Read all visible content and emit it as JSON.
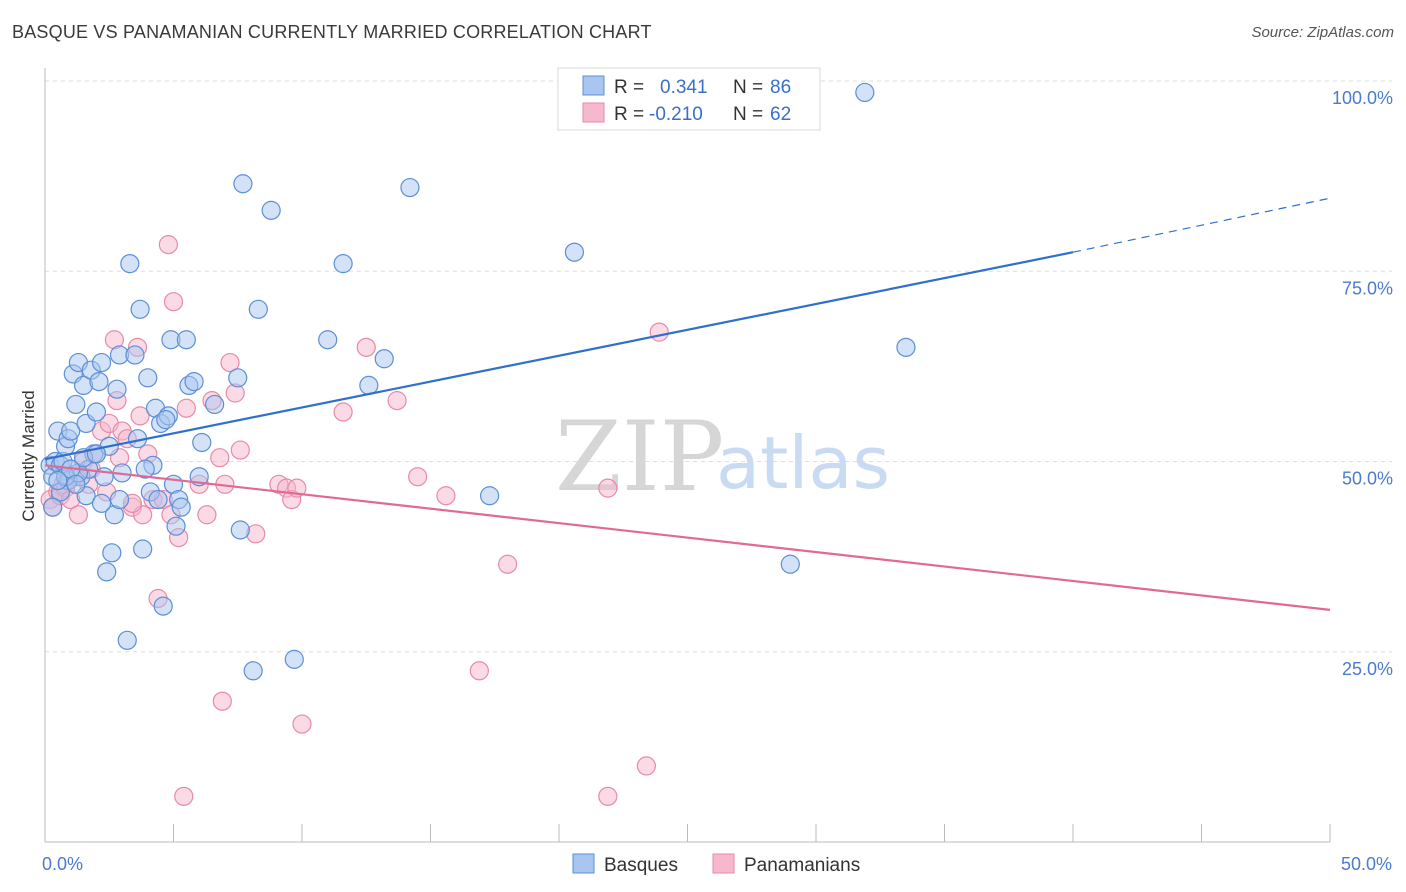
{
  "title": "BASQUE VS PANAMANIAN CURRENTLY MARRIED CORRELATION CHART",
  "source": "Source: ZipAtlas.com",
  "watermark": {
    "zip": "ZIP",
    "atlas": "atlas"
  },
  "legend": {
    "r_label": "R =",
    "n_label": "N =",
    "basques": {
      "r": "0.341",
      "n": "86"
    },
    "panamanians": {
      "r": "-0.210",
      "n": "62"
    }
  },
  "colors": {
    "basque_fill": "#a9c6f0",
    "basque_stroke": "#5b8fd6",
    "basque_line": "#2f6fce",
    "panama_fill": "#f6b8cb",
    "panama_stroke": "#e889a8",
    "panama_line": "#e06a95",
    "grid": "#dddddd",
    "axis": "#bbbbbb"
  },
  "chart_data": {
    "type": "scatter",
    "title": "BASQUE VS PANAMANIAN CURRENTLY MARRIED CORRELATION CHART",
    "xlabel": "",
    "ylabel": "Currently Married",
    "xlim": [
      0,
      50
    ],
    "ylim": [
      0,
      102
    ],
    "x_tick_labels": [
      "0.0%",
      "50.0%"
    ],
    "y_ticks": [
      25,
      50,
      75,
      100
    ],
    "y_tick_labels": [
      "25.0%",
      "50.0%",
      "75.0%",
      "100.0%"
    ],
    "grid": true,
    "legend_position": "top-center",
    "series": [
      {
        "name": "Basques",
        "r": 0.341,
        "n": 86,
        "trend": {
          "x0": 0,
          "y0": 50.3,
          "x1": 40,
          "y1": 77.5,
          "dashed_to_x": 50,
          "dashed_to_y": 84.6
        },
        "points": [
          [
            0.2,
            49.5
          ],
          [
            0.3,
            48
          ],
          [
            0.4,
            50
          ],
          [
            0.5,
            54
          ],
          [
            0.6,
            49.5
          ],
          [
            0.7,
            50
          ],
          [
            0.8,
            52
          ],
          [
            0.9,
            53
          ],
          [
            1.0,
            54
          ],
          [
            1.1,
            61.5
          ],
          [
            1.2,
            57.5
          ],
          [
            1.3,
            63
          ],
          [
            1.4,
            48
          ],
          [
            1.5,
            60
          ],
          [
            1.6,
            55
          ],
          [
            1.7,
            49
          ],
          [
            1.8,
            62
          ],
          [
            1.9,
            51
          ],
          [
            2.0,
            56.5
          ],
          [
            2.1,
            60.5
          ],
          [
            2.2,
            63
          ],
          [
            2.3,
            48
          ],
          [
            2.5,
            52
          ],
          [
            2.6,
            38
          ],
          [
            2.7,
            43
          ],
          [
            2.8,
            59.5
          ],
          [
            2.9,
            64
          ],
          [
            3.0,
            48.5
          ],
          [
            3.2,
            26.5
          ],
          [
            3.3,
            76
          ],
          [
            3.5,
            64
          ],
          [
            3.6,
            53
          ],
          [
            3.7,
            70
          ],
          [
            3.8,
            38.5
          ],
          [
            4.0,
            61
          ],
          [
            4.1,
            46
          ],
          [
            4.2,
            49.5
          ],
          [
            4.3,
            57
          ],
          [
            4.4,
            45
          ],
          [
            4.5,
            55
          ],
          [
            4.6,
            31
          ],
          [
            4.8,
            56
          ],
          [
            4.9,
            66
          ],
          [
            5.0,
            47
          ],
          [
            5.1,
            41.5
          ],
          [
            5.2,
            45
          ],
          [
            5.5,
            66
          ],
          [
            5.6,
            60
          ],
          [
            5.8,
            60.5
          ],
          [
            6.1,
            52.5
          ],
          [
            6.6,
            57.5
          ],
          [
            7.5,
            61
          ],
          [
            7.6,
            41
          ],
          [
            7.7,
            86.5
          ],
          [
            8.1,
            22.5
          ],
          [
            8.3,
            70
          ],
          [
            8.8,
            83
          ],
          [
            9.7,
            24
          ],
          [
            11.0,
            66
          ],
          [
            11.6,
            76
          ],
          [
            12.6,
            60
          ],
          [
            13.2,
            63.5
          ],
          [
            14.2,
            86
          ],
          [
            17.3,
            45.5
          ],
          [
            20.6,
            77.5
          ],
          [
            29.0,
            36.5
          ],
          [
            31.9,
            98.5
          ],
          [
            33.5,
            65
          ],
          [
            0.9,
            47.5
          ],
          [
            1.3,
            48.5
          ],
          [
            1.5,
            50.5
          ],
          [
            1.6,
            45.5
          ],
          [
            2.0,
            51
          ],
          [
            2.2,
            44.5
          ],
          [
            0.6,
            46
          ],
          [
            0.8,
            48
          ],
          [
            1.0,
            49
          ],
          [
            1.2,
            47
          ],
          [
            2.4,
            35.5
          ],
          [
            2.9,
            45
          ],
          [
            3.9,
            49
          ],
          [
            4.7,
            55.5
          ],
          [
            5.3,
            44
          ],
          [
            6.0,
            48
          ],
          [
            0.3,
            44
          ],
          [
            0.5,
            47.5
          ]
        ]
      },
      {
        "name": "Panamanians",
        "r": -0.21,
        "n": 62,
        "trend": {
          "x0": 0,
          "y0": 49.5,
          "x1": 50,
          "y1": 30.5
        },
        "points": [
          [
            0.2,
            45
          ],
          [
            0.3,
            44
          ],
          [
            0.5,
            46
          ],
          [
            0.6,
            45.5
          ],
          [
            0.7,
            47
          ],
          [
            0.8,
            46.5
          ],
          [
            1.0,
            45
          ],
          [
            1.2,
            48
          ],
          [
            1.3,
            43
          ],
          [
            1.5,
            50
          ],
          [
            1.7,
            47
          ],
          [
            1.8,
            49
          ],
          [
            2.0,
            51
          ],
          [
            2.2,
            54
          ],
          [
            2.4,
            46
          ],
          [
            2.5,
            55
          ],
          [
            2.7,
            66
          ],
          [
            2.8,
            58
          ],
          [
            3.0,
            54
          ],
          [
            3.2,
            53
          ],
          [
            3.4,
            44
          ],
          [
            3.6,
            65
          ],
          [
            3.7,
            56
          ],
          [
            3.8,
            43
          ],
          [
            4.0,
            51
          ],
          [
            4.2,
            45
          ],
          [
            4.4,
            32
          ],
          [
            4.6,
            45
          ],
          [
            4.8,
            78.5
          ],
          [
            4.9,
            43
          ],
          [
            5.0,
            71
          ],
          [
            5.2,
            40
          ],
          [
            5.5,
            57
          ],
          [
            6.0,
            47
          ],
          [
            6.3,
            43
          ],
          [
            6.5,
            58
          ],
          [
            6.8,
            50.5
          ],
          [
            7.0,
            47
          ],
          [
            7.2,
            63
          ],
          [
            7.4,
            59
          ],
          [
            7.6,
            51.5
          ],
          [
            8.2,
            40.5
          ],
          [
            9.1,
            47
          ],
          [
            9.4,
            46.5
          ],
          [
            9.6,
            45
          ],
          [
            9.8,
            46.5
          ],
          [
            11.6,
            56.5
          ],
          [
            12.5,
            65
          ],
          [
            13.7,
            58
          ],
          [
            14.5,
            48
          ],
          [
            15.6,
            45.5
          ],
          [
            16.9,
            22.5
          ],
          [
            18.0,
            36.5
          ],
          [
            23.4,
            10
          ],
          [
            23.9,
            67
          ],
          [
            21.9,
            46.5
          ],
          [
            21.9,
            6
          ],
          [
            5.4,
            6
          ],
          [
            6.9,
            18.5
          ],
          [
            10.0,
            15.5
          ],
          [
            3.4,
            44.5
          ],
          [
            2.9,
            50.5
          ]
        ]
      }
    ]
  },
  "bottom_legend": {
    "basques": "Basques",
    "panamanians": "Panamanians"
  }
}
